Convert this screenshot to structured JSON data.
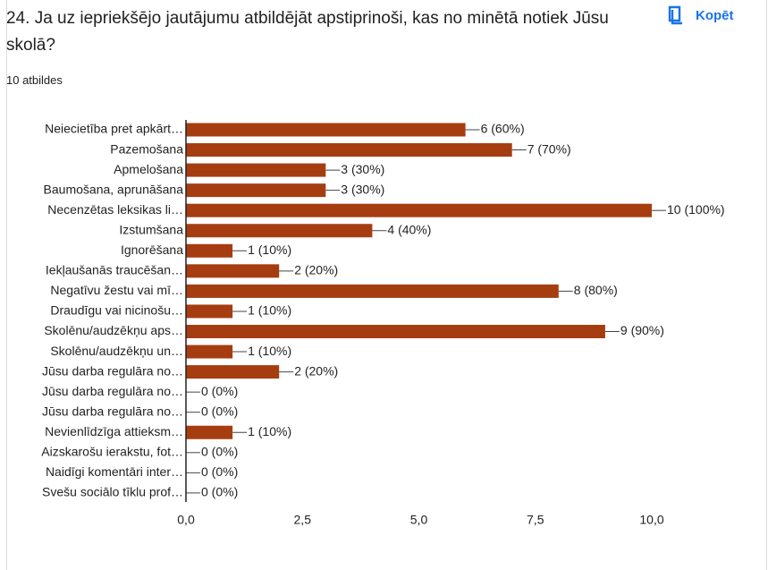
{
  "header": {
    "copy_button": "Kopēt"
  },
  "chart_data": {
    "type": "hbar",
    "title": "24. Ja uz iepriekšējo jautājumu atbildējāt apstiprinoši, kas no minētā notiek Jūsu skolā?",
    "subtitle": "10 atbildes",
    "categories": [
      "Neiecietība pret apkārt…",
      "Pazemošana",
      "Apmelošana",
      "Baumošana, aprunāšana",
      "Necenzētas leksikas li…",
      "Izstumšana",
      "Ignorēšana",
      "Iekļaušanās traucēšan…",
      "Negatīvu žestu vai mī…",
      "Draudīgu vai nicinošu…",
      "Skolēnu/audzēkņu aps…",
      "Skolēnu/audzēkņu un…",
      "Jūsu darba regulāra no…",
      "Jūsu darba regulāra no…",
      "Jūsu darba regulāra no…",
      "Nevienlīdzīga attieksm…",
      "Aizskarošu ierakstu, fot…",
      "Naidīgi komentāri inter…",
      "Svešu sociālo tīklu prof…"
    ],
    "values": [
      6,
      7,
      3,
      3,
      10,
      4,
      1,
      2,
      8,
      1,
      9,
      1,
      2,
      0,
      0,
      1,
      0,
      0,
      0
    ],
    "value_labels": [
      "6 (60%)",
      "7 (70%)",
      "3 (30%)",
      "3 (30%)",
      "10 (100%)",
      "4 (40%)",
      "1 (10%)",
      "2 (20%)",
      "8 (80%)",
      "1 (10%)",
      "9 (90%)",
      "1 (10%)",
      "2 (20%)",
      "0 (0%)",
      "0 (0%)",
      "1 (10%)",
      "0 (0%)",
      "0 (0%)",
      "0 (0%)"
    ],
    "color": "#a63d10",
    "xlim": [
      0,
      10
    ],
    "xticks": [
      {
        "value": 0,
        "label": "0,0"
      },
      {
        "value": 2.5,
        "label": "2,5"
      },
      {
        "value": 5,
        "label": "5,0"
      },
      {
        "value": 7.5,
        "label": "7,5"
      },
      {
        "value": 10,
        "label": "10,0"
      }
    ]
  }
}
